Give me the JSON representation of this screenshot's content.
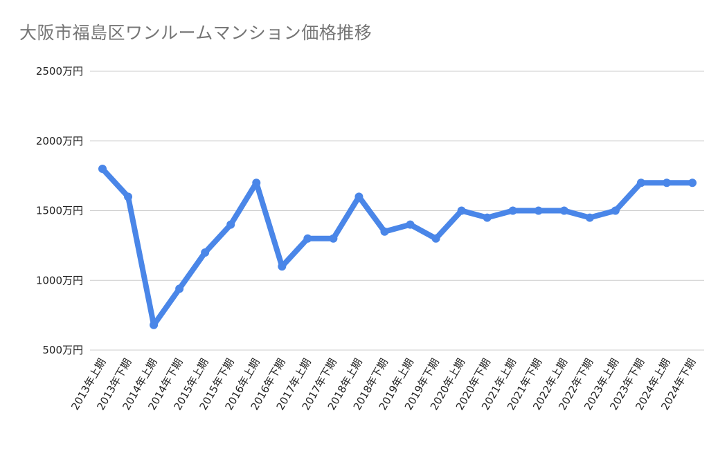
{
  "title": "大阪市福島区ワンルームマンション価格推移",
  "chart_data": {
    "type": "line",
    "title": "大阪市福島区ワンルームマンション価格推移",
    "xlabel": "",
    "ylabel": "",
    "ylim": [
      500,
      2500
    ],
    "y_ticks": [
      "500万円",
      "1000万円",
      "1500万円",
      "2000万円",
      "2500万円"
    ],
    "y_tick_values": [
      500,
      1000,
      1500,
      2000,
      2500
    ],
    "grid": true,
    "legend": "none",
    "categories": [
      "2013年上期",
      "2013年下期",
      "2014年上期",
      "2014年下期",
      "2015年上期",
      "2015年下期",
      "2016年上期",
      "2016年下期",
      "2017年上期",
      "2017年下期",
      "2018年上期",
      "2018年下期",
      "2019年上期",
      "2019年下期",
      "2020年上期",
      "2020年下期",
      "2021年上期",
      "2021年下期",
      "2022年上期",
      "2022年下期",
      "2023年上期",
      "2023年下期",
      "2024年上期",
      "2024年下期"
    ],
    "series": [
      {
        "values": [
          1800,
          1600,
          680,
          940,
          1200,
          1400,
          1700,
          1100,
          1300,
          1300,
          1600,
          1350,
          1400,
          1300,
          1500,
          1450,
          1500,
          1500,
          1500,
          1450,
          1500,
          1700,
          1700,
          1700
        ],
        "color": "#4a86e8"
      }
    ],
    "colors": {
      "gridline": "#cccccc",
      "line": "#4a86e8",
      "title": "#757575"
    }
  }
}
